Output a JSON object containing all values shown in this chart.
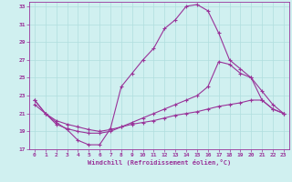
{
  "xlabel": "Windchill (Refroidissement éolien,°C)",
  "xlim": [
    -0.5,
    23.5
  ],
  "ylim": [
    17,
    33.5
  ],
  "yticks": [
    17,
    19,
    21,
    23,
    25,
    27,
    29,
    31,
    33
  ],
  "xticks": [
    0,
    1,
    2,
    3,
    4,
    5,
    6,
    7,
    8,
    9,
    10,
    11,
    12,
    13,
    14,
    15,
    16,
    17,
    18,
    19,
    20,
    21,
    22,
    23
  ],
  "background_color": "#d0f0f0",
  "grid_color": "#b0dede",
  "line_color": "#993399",
  "line1_x": [
    0,
    1,
    2,
    3,
    4,
    5,
    6,
    7,
    8,
    9,
    10,
    11,
    12,
    13,
    14,
    15,
    16,
    17,
    18,
    19,
    20,
    21,
    22,
    23
  ],
  "line1_y": [
    22.5,
    21.0,
    20.0,
    19.2,
    18.0,
    17.5,
    17.5,
    19.3,
    24.0,
    25.5,
    27.0,
    28.3,
    30.5,
    31.5,
    33.0,
    33.2,
    32.5,
    30.0,
    27.0,
    26.0,
    25.0,
    23.5,
    22.0,
    21.0
  ],
  "line2_x": [
    0,
    1,
    2,
    3,
    4,
    5,
    6,
    7,
    8,
    9,
    10,
    11,
    12,
    13,
    14,
    15,
    16,
    17,
    18,
    19,
    20,
    21,
    22,
    23
  ],
  "line2_y": [
    22.5,
    21.0,
    19.8,
    19.3,
    19.0,
    18.8,
    18.8,
    19.0,
    19.5,
    20.0,
    20.5,
    21.0,
    21.5,
    22.0,
    22.5,
    23.0,
    24.0,
    26.8,
    26.5,
    25.5,
    25.0,
    22.5,
    21.5,
    21.0
  ],
  "line3_x": [
    0,
    1,
    2,
    3,
    4,
    5,
    6,
    7,
    8,
    9,
    10,
    11,
    12,
    13,
    14,
    15,
    16,
    17,
    18,
    19,
    20,
    21,
    22,
    23
  ],
  "line3_y": [
    22.0,
    21.0,
    20.2,
    19.8,
    19.5,
    19.2,
    19.0,
    19.2,
    19.5,
    19.8,
    20.0,
    20.2,
    20.5,
    20.8,
    21.0,
    21.2,
    21.5,
    21.8,
    22.0,
    22.2,
    22.5,
    22.5,
    21.5,
    21.0
  ]
}
